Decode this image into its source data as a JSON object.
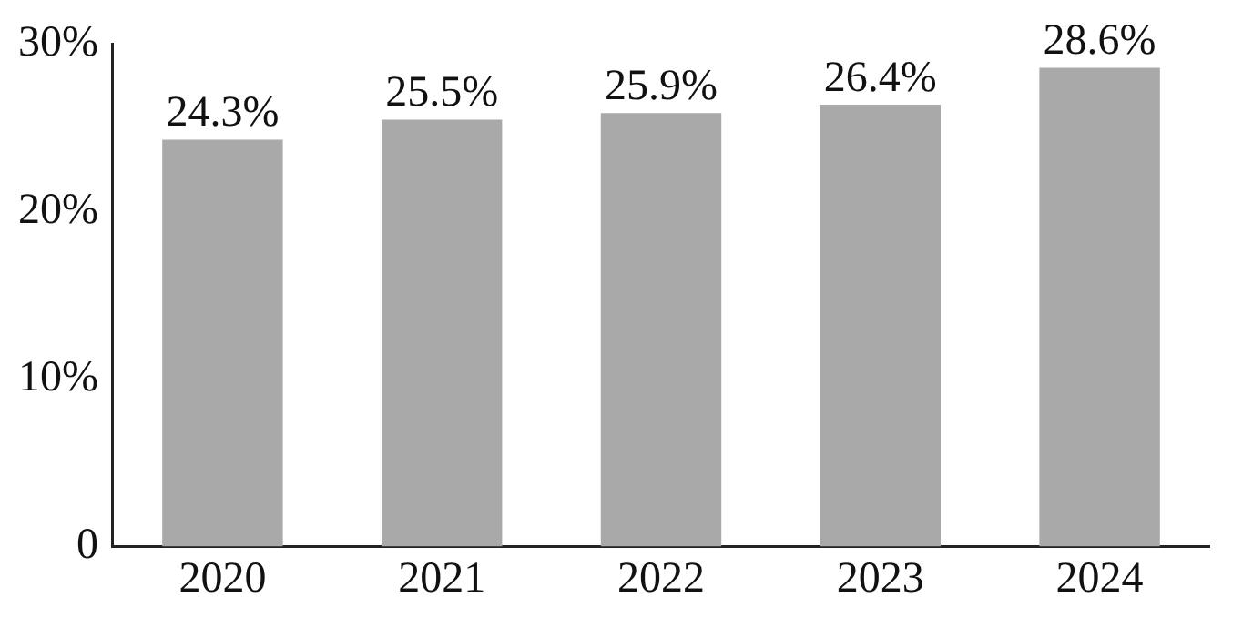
{
  "chart_data": {
    "type": "bar",
    "categories": [
      "2020",
      "2021",
      "2022",
      "2023",
      "2024"
    ],
    "values": [
      24.3,
      25.5,
      25.9,
      26.4,
      28.6
    ],
    "value_labels": [
      "24.3%",
      "25.5%",
      "25.9%",
      "26.4%",
      "28.6%"
    ],
    "color": "#a9a9a9",
    "ylim": [
      0,
      30
    ],
    "yticks": [
      0,
      {
        "value": 10,
        "label": "10%"
      },
      {
        "value": 20,
        "label": "20%"
      },
      {
        "value": 30,
        "label": "30%"
      }
    ],
    "grid": false,
    "legend": false
  }
}
